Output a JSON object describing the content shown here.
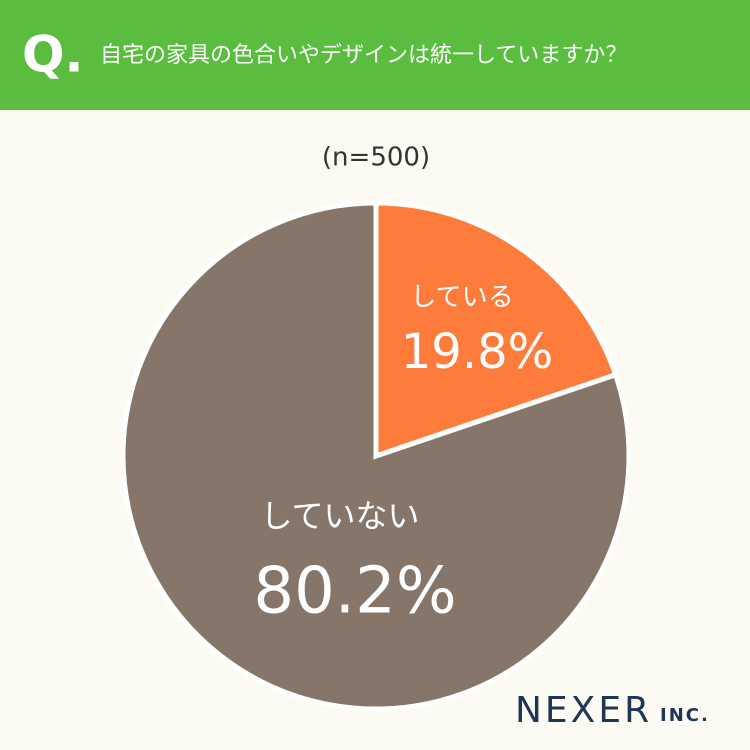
{
  "chart_data": {
    "type": "pie",
    "badge": "Q.",
    "title": "自宅の家具の色合いやデザインは統一していますか？",
    "subtitle": "(n=500)",
    "categories": [
      "している",
      "していない"
    ],
    "values": [
      19.8,
      80.2
    ],
    "value_labels": [
      "19.8%",
      "80.2%"
    ],
    "colors": [
      "#fd7b3b",
      "#86766a"
    ],
    "logo": "NEXER",
    "logo_suffix": "INC."
  }
}
